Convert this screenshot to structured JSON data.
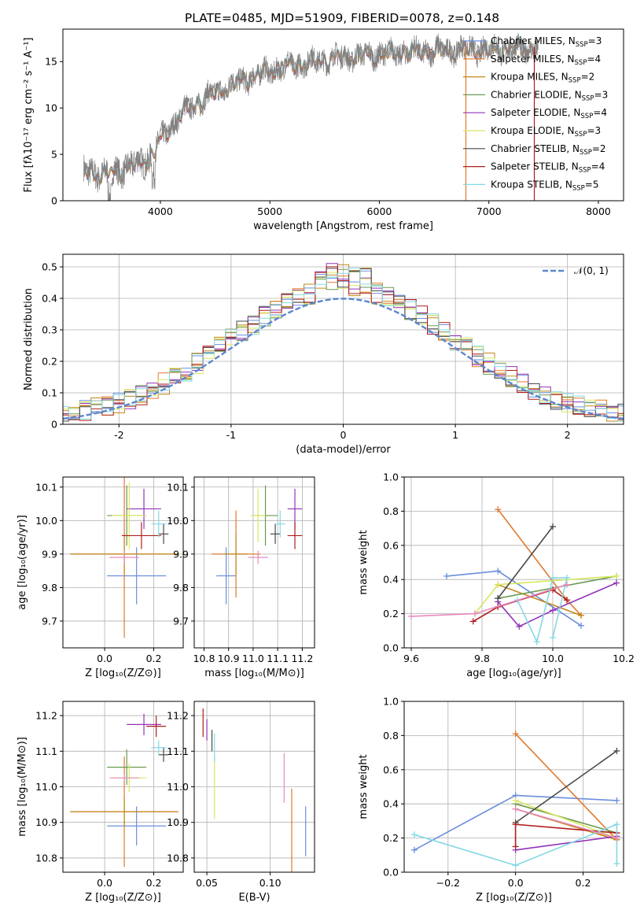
{
  "title": "PLATE=0485, MJD=51909, FIBERID=0078, z=0.148",
  "colors": {
    "Chabrier MILES": "#6a8fdc",
    "Salpeter MILES": "#e07a2e",
    "Kroupa MILES": "#c2871a",
    "Chabrier ELODIE": "#6a9a4e",
    "Salpeter ELODIE": "#9333b8",
    "Kroupa ELODIE": "#d8e860",
    "Chabrier STELIB": "#4a4a4a",
    "Salpeter STELIB": "#b01c1c",
    "Kroupa STELIB": "#85d9e3",
    "data": "#808080",
    "normal": "#5b86d0",
    "pink": "#e88ac0"
  },
  "chart_data": [
    {
      "type": "line",
      "name": "spectrum",
      "xlabel": "wavelength [Angstrom, rest frame]",
      "ylabel": "Flux [fλ10⁻¹⁷ erg cm⁻² s⁻¹ A⁻¹]",
      "xlim": [
        3110,
        8230
      ],
      "ylim": [
        0,
        18.5
      ],
      "xticks": [
        4000,
        5000,
        6000,
        7000,
        8000
      ],
      "yticks": [
        0,
        5,
        10,
        15
      ],
      "continuum": {
        "x": [
          3300,
          3500,
          3700,
          3900,
          4000,
          4200,
          4400,
          4600,
          4800,
          5000,
          5200,
          5400,
          5600,
          5800,
          6000,
          6200,
          6400,
          6600,
          6800,
          7000,
          7200,
          7400
        ],
        "y": [
          3.2,
          2.8,
          3.6,
          4.5,
          6.5,
          9.5,
          11.0,
          12.2,
          13.2,
          14.0,
          14.6,
          15.0,
          15.4,
          15.6,
          15.8,
          16.0,
          16.1,
          16.2,
          16.3,
          16.3,
          16.4,
          16.4
        ]
      },
      "legend": [
        {
          "label": "Chabrier MILES, N",
          "sub": "SSP",
          "n": "=3"
        },
        {
          "label": "Salpeter MILES, N",
          "sub": "SSP",
          "n": "=4"
        },
        {
          "label": "Kroupa MILES, N",
          "sub": "SSP",
          "n": "=2"
        },
        {
          "label": "Chabrier ELODIE, N",
          "sub": "SSP",
          "n": "=3"
        },
        {
          "label": "Salpeter ELODIE, N",
          "sub": "SSP",
          "n": "=4"
        },
        {
          "label": "Kroupa ELODIE, N",
          "sub": "SSP",
          "n": "=3"
        },
        {
          "label": "Chabrier STELIB, N",
          "sub": "SSP",
          "n": "=2"
        },
        {
          "label": "Salpeter STELIB, N",
          "sub": "SSP",
          "n": "=4"
        },
        {
          "label": "Kroupa STELIB, N",
          "sub": "SSP",
          "n": "=5"
        }
      ]
    },
    {
      "type": "line",
      "name": "residual histogram",
      "xlabel": "(data-model)/error",
      "ylabel": "Normed distribution",
      "xlim": [
        -2.5,
        2.5
      ],
      "ylim": [
        0,
        0.54
      ],
      "xticks": [
        -2,
        -1,
        0,
        1,
        2
      ],
      "yticks": [
        0.0,
        0.1,
        0.2,
        0.3,
        0.4,
        0.5
      ],
      "legend": "𝒩(0, 1)",
      "bin_width": 0.1
    },
    {
      "type": "scatter",
      "name": "age vs Z",
      "xlabel": "Z [log₁₀(Z/Z⊙)]",
      "ylabel": "age  [log₁₀(age/yr)]",
      "xlim": [
        -0.17,
        0.32
      ],
      "ylim": [
        9.62,
        10.13
      ],
      "xticks": [
        "0.0",
        "0.2"
      ],
      "yticks": [
        "9.7",
        "9.8",
        "9.9",
        "10.0",
        "10.1"
      ],
      "points": [
        {
          "s": "Chabrier MILES",
          "x": 0.13,
          "y": 9.835,
          "xe": 0.12,
          "ye": 0.085
        },
        {
          "s": "Salpeter MILES",
          "x": 0.08,
          "y": 9.9,
          "xe": 0.22,
          "ye": 0.25
        },
        {
          "s": "Kroupa MILES",
          "x": 0.08,
          "y": 9.9,
          "xe": 0.22,
          "ye": 0.06
        },
        {
          "s": "Chabrier ELODIE",
          "x": 0.09,
          "y": 10.015,
          "xe": 0.08,
          "ye": 0.09
        },
        {
          "s": "Salpeter ELODIE",
          "x": 0.16,
          "y": 10.035,
          "xe": 0.07,
          "ye": 0.06
        },
        {
          "s": "Kroupa ELODIE",
          "x": 0.1,
          "y": 10.015,
          "xe": 0.07,
          "ye": 0.1
        },
        {
          "s": "Chabrier STELIB",
          "x": 0.24,
          "y": 9.96,
          "xe": 0.02,
          "ye": 0.03
        },
        {
          "s": "Salpeter STELIB",
          "x": 0.15,
          "y": 9.955,
          "xe": 0.08,
          "ye": 0.04
        },
        {
          "s": "Kroupa STELIB",
          "x": 0.22,
          "y": 9.99,
          "xe": 0.03,
          "ye": 0.04
        },
        {
          "s": "pink",
          "x": 0.08,
          "y": 9.89,
          "xe": 0.06,
          "ye": 0.02
        }
      ]
    },
    {
      "type": "scatter",
      "name": "age vs mass",
      "xlabel": "mass [log₁₀(M/M⊙)]",
      "ylabel": "",
      "xlim": [
        10.76,
        11.25
      ],
      "ylim": [
        9.62,
        10.13
      ],
      "xticks": [
        "10.8",
        "10.9",
        "11.0",
        "11.1",
        "11.2"
      ],
      "yticks": [
        "9.7",
        "9.8",
        "9.9",
        "10.0",
        "10.1"
      ],
      "points": [
        {
          "s": "Chabrier MILES",
          "x": 10.89,
          "y": 9.835,
          "xe": 0.04,
          "ye": 0.085
        },
        {
          "s": "Salpeter MILES",
          "x": 10.93,
          "y": 9.9,
          "xe": 0.1,
          "ye": 0.13
        },
        {
          "s": "Kroupa MILES",
          "x": 10.93,
          "y": 9.9,
          "xe": 0.05,
          "ye": 0.06
        },
        {
          "s": "Chabrier ELODIE",
          "x": 11.05,
          "y": 10.015,
          "xe": 0.05,
          "ye": 0.09
        },
        {
          "s": "Salpeter ELODIE",
          "x": 11.17,
          "y": 10.035,
          "xe": 0.03,
          "ye": 0.06
        },
        {
          "s": "Kroupa ELODIE",
          "x": 11.02,
          "y": 10.015,
          "xe": 0.03,
          "ye": 0.08
        },
        {
          "s": "Chabrier STELIB",
          "x": 11.09,
          "y": 9.96,
          "xe": 0.02,
          "ye": 0.03
        },
        {
          "s": "Salpeter STELIB",
          "x": 11.17,
          "y": 9.955,
          "xe": 0.03,
          "ye": 0.04
        },
        {
          "s": "Kroupa STELIB",
          "x": 11.11,
          "y": 9.99,
          "xe": 0.02,
          "ye": 0.04
        },
        {
          "s": "pink",
          "x": 11.02,
          "y": 9.89,
          "xe": 0.04,
          "ye": 0.02
        }
      ]
    },
    {
      "type": "line",
      "name": "mass weight vs age",
      "xlabel": "age  [log₁₀(age/yr)]",
      "ylabel": "mass weight",
      "xlim": [
        9.58,
        10.2
      ],
      "ylim": [
        0,
        1.0
      ],
      "xticks": [
        "9.6",
        "9.8",
        "10.0",
        "10.2"
      ],
      "yticks": [
        "0.0",
        "0.2",
        "0.4",
        "0.6",
        "0.8",
        "1.0"
      ],
      "series": [
        {
          "s": "Chabrier MILES",
          "x": [
            9.7,
            9.845,
            10.08
          ],
          "y": [
            0.42,
            0.45,
            0.13
          ]
        },
        {
          "s": "Salpeter MILES",
          "x": [
            9.845,
            10.04,
            10.08
          ],
          "y": [
            0.81,
            0.28,
            0.19
          ]
        },
        {
          "s": "Kroupa MILES",
          "x": [
            9.845,
            10.08
          ],
          "y": [
            0.37,
            0.19
          ]
        },
        {
          "s": "Chabrier ELODIE",
          "x": [
            9.845,
            10.18
          ],
          "y": [
            0.29,
            0.42
          ]
        },
        {
          "s": "Salpeter ELODIE",
          "x": [
            9.845,
            9.905,
            10.0,
            10.18
          ],
          "y": [
            0.27,
            0.125,
            0.22,
            0.38
          ]
        },
        {
          "s": "Kroupa ELODIE",
          "x": [
            9.78,
            9.845,
            10.18
          ],
          "y": [
            0.2,
            0.37,
            0.42
          ]
        },
        {
          "s": "Chabrier STELIB",
          "x": [
            9.845,
            10.0
          ],
          "y": [
            0.29,
            0.71
          ]
        },
        {
          "s": "Salpeter STELIB",
          "x": [
            9.775,
            9.845,
            10.0,
            10.04
          ],
          "y": [
            0.155,
            0.24,
            0.34,
            0.28
          ]
        },
        {
          "s": "Kroupa STELIB",
          "x": [
            9.9,
            9.955,
            10.0,
            10.04,
            10.0
          ],
          "y": [
            0.28,
            0.035,
            0.41,
            0.41,
            0.06
          ]
        },
        {
          "s": "pink",
          "x": [
            9.6,
            9.78,
            10.04
          ],
          "y": [
            0.185,
            0.2,
            0.37
          ]
        }
      ]
    },
    {
      "type": "scatter",
      "name": "mass vs Z",
      "xlabel": "Z [log₁₀(Z/Z⊙)]",
      "ylabel": "mass [log₁₀(M/M⊙)]",
      "xlim": [
        -0.17,
        0.32
      ],
      "ylim": [
        10.76,
        11.24
      ],
      "xticks": [
        "0.0",
        "0.2"
      ],
      "yticks": [
        "10.8",
        "10.9",
        "11.0",
        "11.1",
        "11.2"
      ],
      "points": [
        {
          "s": "Chabrier MILES",
          "x": 0.13,
          "y": 10.89,
          "xe": 0.12,
          "ye": 0.055
        },
        {
          "s": "Salpeter MILES",
          "x": 0.08,
          "y": 10.93,
          "xe": 0.22,
          "ye": 0.155
        },
        {
          "s": "Kroupa MILES",
          "x": 0.08,
          "y": 10.93,
          "xe": 0.22,
          "ye": 0.04
        },
        {
          "s": "Chabrier ELODIE",
          "x": 0.09,
          "y": 11.055,
          "xe": 0.08,
          "ye": 0.05
        },
        {
          "s": "Salpeter ELODIE",
          "x": 0.16,
          "y": 11.175,
          "xe": 0.07,
          "ye": 0.03
        },
        {
          "s": "Kroupa ELODIE",
          "x": 0.1,
          "y": 11.025,
          "xe": 0.07,
          "ye": 0.04
        },
        {
          "s": "Chabrier STELIB",
          "x": 0.24,
          "y": 11.09,
          "xe": 0.02,
          "ye": 0.02
        },
        {
          "s": "Salpeter STELIB",
          "x": 0.21,
          "y": 11.17,
          "xe": 0.04,
          "ye": 0.03
        },
        {
          "s": "Kroupa STELIB",
          "x": 0.22,
          "y": 11.11,
          "xe": 0.03,
          "ye": 0.02
        },
        {
          "s": "pink",
          "x": 0.08,
          "y": 11.025,
          "xe": 0.06,
          "ye": 0.01
        }
      ]
    },
    {
      "type": "scatter",
      "name": "mass vs E(B-V)",
      "xlabel": "E(B-V)",
      "ylabel": "",
      "xlim": [
        0.04,
        0.135
      ],
      "ylim": [
        10.76,
        11.24
      ],
      "xticks": [
        "0.05",
        "0.10"
      ],
      "yticks": [
        "10.8",
        "10.9",
        "11.0",
        "11.1",
        "11.2"
      ],
      "points": [
        {
          "s": "Chabrier MILES",
          "x": 0.128,
          "y": 10.875,
          "xe": 0,
          "ye": 0.07
        },
        {
          "s": "Salpeter MILES",
          "x": 0.117,
          "y": 10.87,
          "xe": 0,
          "ye": 0.125
        },
        {
          "s": "Kroupa ELODIE",
          "x": 0.056,
          "y": 11.0,
          "xe": 0,
          "ye": 0.09
        },
        {
          "s": "Salpeter ELODIE",
          "x": 0.05,
          "y": 11.16,
          "xe": 0,
          "ye": 0.03
        },
        {
          "s": "Salpeter STELIB",
          "x": 0.047,
          "y": 11.18,
          "xe": 0,
          "ye": 0.04
        },
        {
          "s": "Chabrier STELIB",
          "x": 0.054,
          "y": 11.13,
          "xe": 0,
          "ye": 0.03
        },
        {
          "s": "Kroupa STELIB",
          "x": 0.056,
          "y": 11.11,
          "xe": 0,
          "ye": 0.04
        },
        {
          "s": "pink",
          "x": 0.111,
          "y": 11.025,
          "xe": 0,
          "ye": 0.07
        }
      ]
    },
    {
      "type": "line",
      "name": "mass weight vs Z",
      "xlabel": "Z [log₁₀(Z/Z⊙)]",
      "ylabel": "mass weight",
      "xlim": [
        -0.33,
        0.32
      ],
      "ylim": [
        0,
        1.0
      ],
      "xticks": [
        "−0.2",
        "0.0",
        "0.2"
      ],
      "yticks": [
        "0.0",
        "0.2",
        "0.4",
        "0.6",
        "0.8",
        "1.0"
      ],
      "series": [
        {
          "s": "Chabrier MILES",
          "x": [
            -0.3,
            0.0,
            0.3
          ],
          "y": [
            0.13,
            0.45,
            0.42
          ]
        },
        {
          "s": "Salpeter MILES",
          "x": [
            0.0,
            0.3
          ],
          "y": [
            0.81,
            0.19
          ]
        },
        {
          "s": "Kroupa MILES",
          "x": [
            0.0,
            0.3
          ],
          "y": [
            0.37,
            0.19
          ]
        },
        {
          "s": "Chabrier ELODIE",
          "x": [
            0.0,
            0.3
          ],
          "y": [
            0.4,
            0.23
          ]
        },
        {
          "s": "Salpeter ELODIE",
          "x": [
            0.0,
            0.3
          ],
          "y": [
            0.13,
            0.21
          ]
        },
        {
          "s": "Kroupa ELODIE",
          "x": [
            0.0,
            0.3
          ],
          "y": [
            0.42,
            0.2
          ]
        },
        {
          "s": "Chabrier STELIB",
          "x": [
            0.0,
            0.3
          ],
          "y": [
            0.29,
            0.71
          ]
        },
        {
          "s": "Salpeter STELIB",
          "x": [
            0.0,
            0.0,
            0.3
          ],
          "y": [
            0.15,
            0.28,
            0.23
          ]
        },
        {
          "s": "Kroupa STELIB",
          "x": [
            -0.3,
            0.0,
            0.3,
            0.3
          ],
          "y": [
            0.22,
            0.04,
            0.28,
            0.05
          ]
        },
        {
          "s": "pink",
          "x": [
            0.0,
            0.3
          ],
          "y": [
            0.37,
            0.2
          ]
        }
      ]
    }
  ]
}
